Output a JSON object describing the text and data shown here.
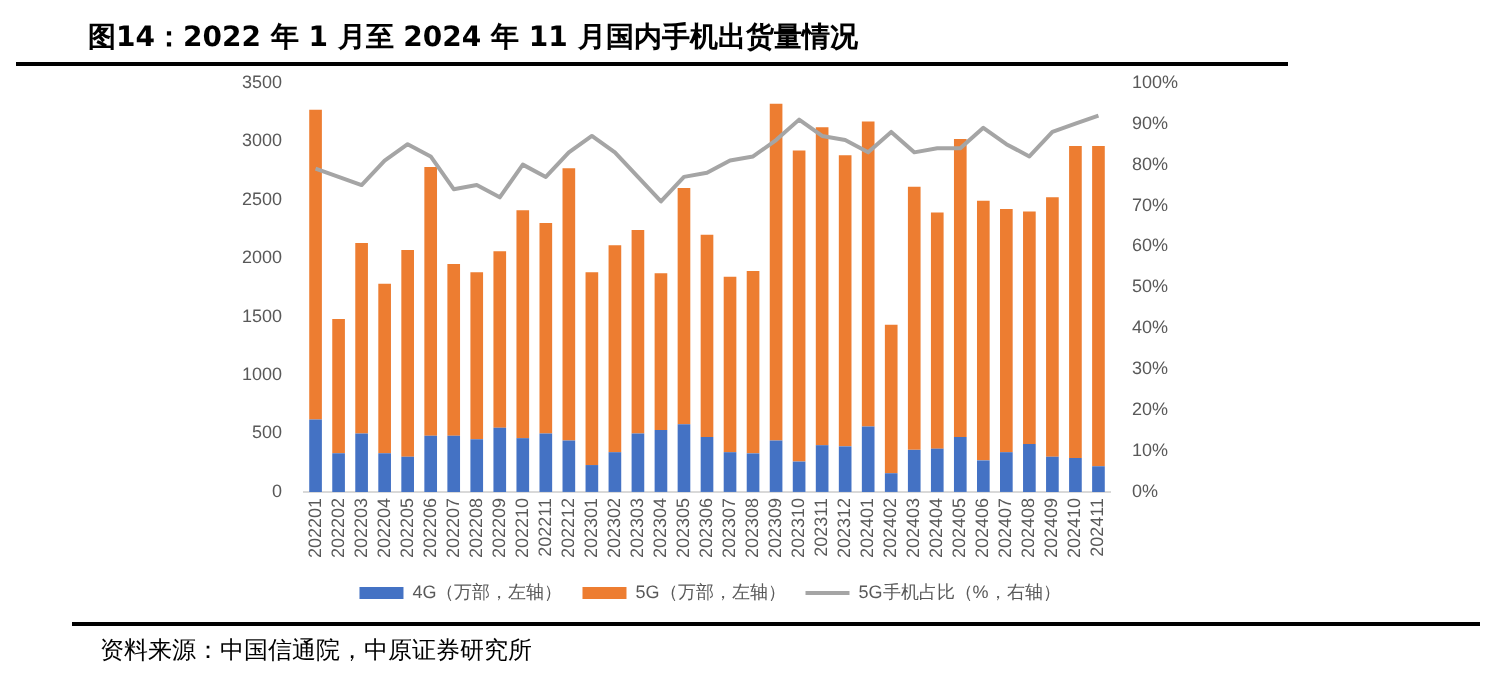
{
  "chart_data": {
    "type": "bar",
    "title": "图14：2022 年 1 月至 2024 年 11 月国内手机出货量情况",
    "annotations": [
      "资料来源：中国信通院，中原证券研究所"
    ],
    "categories": [
      "202201",
      "202202",
      "202203",
      "202204",
      "202205",
      "202206",
      "202207",
      "202208",
      "202209",
      "202210",
      "202211",
      "202212",
      "202301",
      "202302",
      "202303",
      "202304",
      "202305",
      "202306",
      "202307",
      "202308",
      "202309",
      "202310",
      "202311",
      "202312",
      "202401",
      "202402",
      "202403",
      "202404",
      "202405",
      "202406",
      "202407",
      "202408",
      "202409",
      "202410",
      "202411"
    ],
    "stacked": true,
    "legend": "bottom",
    "grid": false,
    "marker": "none",
    "ylim": [
      0,
      3500
    ],
    "yticks": [
      0,
      500,
      1000,
      1500,
      2000,
      2500,
      3000,
      3500
    ],
    "y2lim": [
      0,
      100
    ],
    "y2ticks": [
      {
        "value": 0,
        "label": "0%"
      },
      {
        "value": 10,
        "label": "10%"
      },
      {
        "value": 20,
        "label": "20%"
      },
      {
        "value": 30,
        "label": "30%"
      },
      {
        "value": 40,
        "label": "40%"
      },
      {
        "value": 50,
        "label": "50%"
      },
      {
        "value": 60,
        "label": "60%"
      },
      {
        "value": 70,
        "label": "70%"
      },
      {
        "value": 80,
        "label": "80%"
      },
      {
        "value": 90,
        "label": "90%"
      },
      {
        "value": 100,
        "label": "100%"
      }
    ],
    "series": [
      {
        "name": "4G（万部，左轴）",
        "color": "#4472c4",
        "values": [
          620,
          330,
          500,
          330,
          300,
          480,
          480,
          450,
          550,
          460,
          500,
          440,
          230,
          340,
          500,
          530,
          580,
          470,
          340,
          330,
          440,
          260,
          400,
          390,
          560,
          160,
          360,
          370,
          470,
          270,
          340,
          410,
          300,
          290,
          220
        ]
      },
      {
        "name": "5G（万部，左轴）",
        "color": "#ed7d31",
        "values": [
          2650,
          1150,
          1630,
          1450,
          1770,
          2300,
          1470,
          1430,
          1510,
          1950,
          1800,
          2330,
          1650,
          1770,
          1740,
          1340,
          2020,
          1730,
          1500,
          1560,
          2880,
          2660,
          2720,
          2490,
          2610,
          1270,
          2250,
          2020,
          2550,
          2220,
          2080,
          1990,
          2220,
          2670,
          2740
        ]
      },
      {
        "name": "5G手机占比（%，右轴）",
        "type": "line",
        "axis": "y2",
        "color": "#a5a5a5",
        "values": [
          79,
          77,
          75,
          81,
          85,
          82,
          74,
          75,
          72,
          80,
          77,
          83,
          87,
          83,
          77,
          71,
          77,
          78,
          81,
          82,
          86,
          91,
          87,
          86,
          83,
          88,
          83,
          84,
          84,
          89,
          85,
          82,
          88,
          90,
          92
        ]
      }
    ]
  }
}
